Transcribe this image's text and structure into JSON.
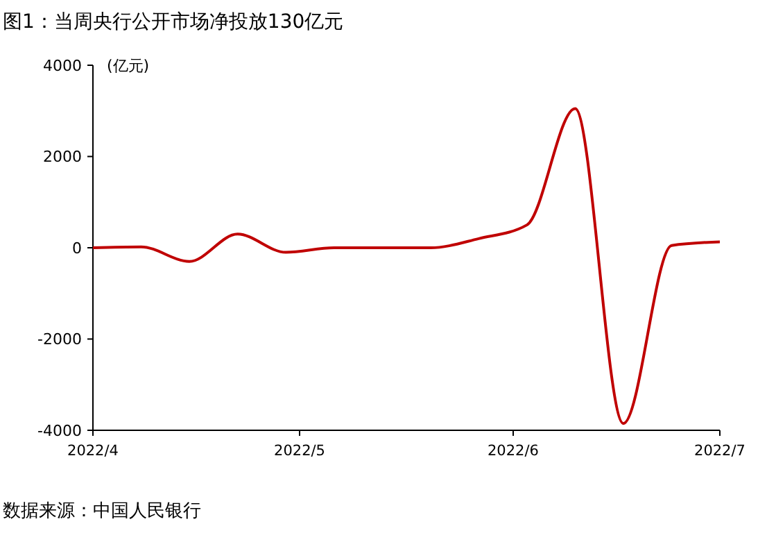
{
  "chart_data": {
    "type": "line",
    "title": "图1：当周央行公开市场净投放130亿元",
    "ylabel": "(亿元)",
    "x": [
      "2022-04-01",
      "2022-04-08",
      "2022-04-15",
      "2022-04-22",
      "2022-04-29",
      "2022-05-06",
      "2022-05-13",
      "2022-05-20",
      "2022-05-27",
      "2022-06-03",
      "2022-06-10",
      "2022-06-17",
      "2022-06-24",
      "2022-07-01"
    ],
    "series": [
      {
        "color": "#c00000",
        "values": [
          0,
          20,
          -300,
          300,
          -100,
          0,
          0,
          0,
          200,
          500,
          3050,
          -3850,
          50,
          130
        ]
      }
    ],
    "xlim": [
      "2022-04-01",
      "2022-07-01"
    ],
    "xticks": [
      {
        "value": "2022-04-01",
        "label": "2022/4"
      },
      {
        "value": "2022-05-01",
        "label": "2022/5"
      },
      {
        "value": "2022-06-01",
        "label": "2022/6"
      },
      {
        "value": "2022-07-01",
        "label": "2022/7"
      }
    ],
    "ylim": [
      -4000,
      4000
    ],
    "yticks": [
      -4000,
      -2000,
      0,
      2000,
      4000
    ],
    "grid": false,
    "marker": "none",
    "line_style": "solid",
    "annotations": [
      "数据来源：中国人民银行"
    ]
  }
}
